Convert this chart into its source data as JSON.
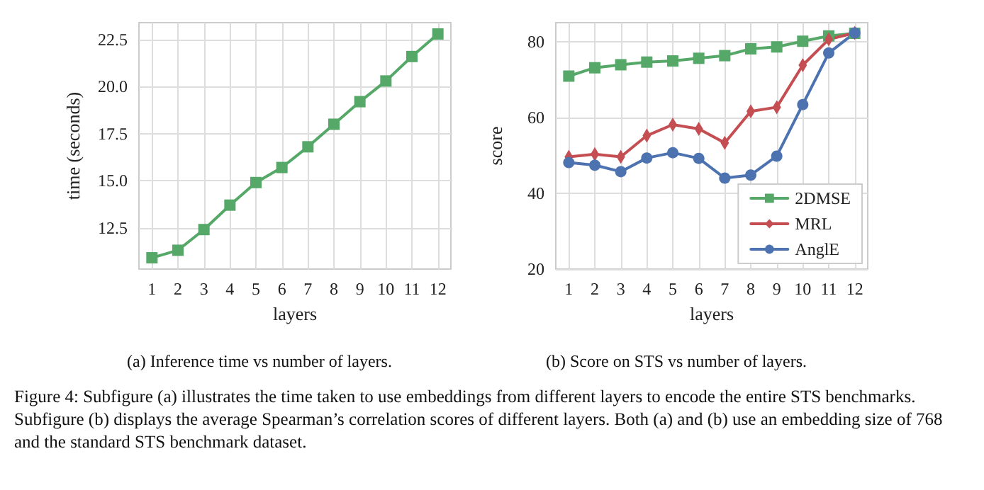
{
  "chart_data": [
    {
      "type": "line",
      "title": "(a) Inference time vs number of layers.",
      "xlabel": "layers",
      "ylabel": "time (seconds)",
      "x": [
        1,
        2,
        3,
        4,
        5,
        6,
        7,
        8,
        9,
        10,
        11,
        12
      ],
      "xlim": [
        0.5,
        12.5
      ],
      "xticks": [
        1,
        2,
        3,
        4,
        5,
        6,
        7,
        8,
        9,
        10,
        11,
        12
      ],
      "ylim": [
        10.3,
        23.4
      ],
      "yticks": [
        12.5,
        {
          "value": 15,
          "label": "15.0"
        },
        17.5,
        {
          "value": 20,
          "label": "20.0"
        },
        22.5
      ],
      "grid": true,
      "legend": false,
      "series": [
        {
          "color": "#55a868",
          "marker": "square",
          "values": [
            10.9,
            11.3,
            12.4,
            13.7,
            14.9,
            15.7,
            16.8,
            18.0,
            19.2,
            20.3,
            21.6,
            22.8
          ]
        }
      ],
      "annotations": [
        "Figure 4: Subfigure (a) illustrates the time taken to use embeddings from different layers to encode the entire STS benchmarks. Subfigure (b) displays the average Spearman’s correlation scores of different layers. Both (a) and (b) use an embedding size of 768 and the standard STS benchmark dataset."
      ]
    },
    {
      "type": "line",
      "title": "(b) Score on STS vs number of layers.",
      "xlabel": "layers",
      "ylabel": "score",
      "x": [
        1,
        2,
        3,
        4,
        5,
        6,
        7,
        8,
        9,
        10,
        11,
        12
      ],
      "xlim": [
        0.5,
        12.5
      ],
      "xticks": [
        1,
        2,
        3,
        4,
        5,
        6,
        7,
        8,
        9,
        10,
        11,
        12
      ],
      "ylim": [
        20,
        85
      ],
      "yticks": [
        20,
        40,
        60,
        80
      ],
      "grid": true,
      "legend": "bottom right",
      "series": [
        {
          "name": "2DMSE",
          "color": "#55a868",
          "marker": "square",
          "values": [
            70.9,
            73.1,
            73.9,
            74.6,
            74.9,
            75.6,
            76.3,
            78.1,
            78.6,
            80.1,
            81.5,
            82.2
          ]
        },
        {
          "name": "MRL",
          "color": "#c44e52",
          "marker": "diamond",
          "values": [
            49.6,
            50.3,
            49.6,
            55.2,
            58.1,
            57.0,
            53.3,
            61.6,
            62.7,
            73.8,
            80.6,
            82.3
          ]
        },
        {
          "name": "AnglE",
          "color": "#4c72b0",
          "marker": "circle",
          "values": [
            48.1,
            47.4,
            45.7,
            49.3,
            50.7,
            49.2,
            44.0,
            44.8,
            49.8,
            63.4,
            77.0,
            82.3
          ]
        }
      ]
    }
  ]
}
